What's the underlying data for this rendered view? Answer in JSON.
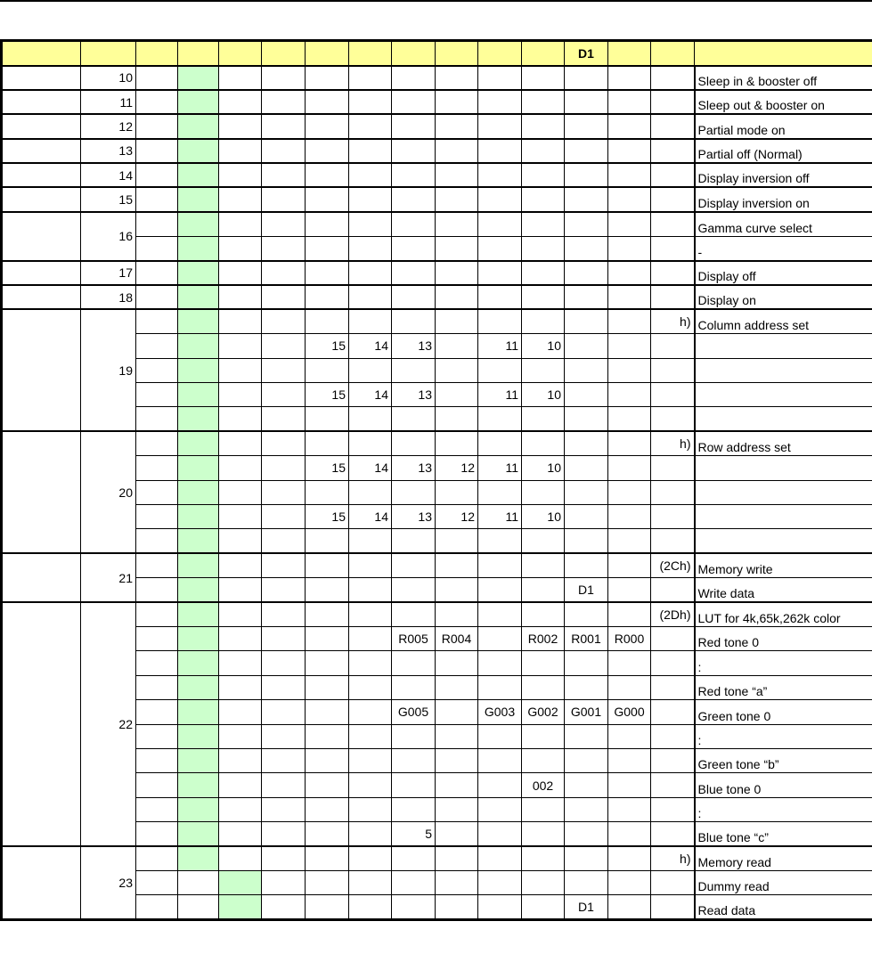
{
  "colors": {
    "header_bg": "#ffff99",
    "green_column": "#ccffcc"
  },
  "header": {
    "cells": [
      "",
      "",
      "",
      "",
      "",
      "",
      "",
      "",
      "",
      "",
      "",
      "",
      "D1",
      "",
      ""
    ],
    "desc": ""
  },
  "groups": [
    {
      "num": "10",
      "rows": [
        {
          "cells": {},
          "desc": "Sleep in & booster off"
        }
      ]
    },
    {
      "num": "11",
      "rows": [
        {
          "cells": {},
          "desc": "Sleep out & booster on"
        }
      ]
    },
    {
      "num": "12",
      "rows": [
        {
          "cells": {},
          "desc": "Partial mode on"
        }
      ]
    },
    {
      "num": "13",
      "rows": [
        {
          "cells": {},
          "desc": "Partial off (Normal)"
        }
      ]
    },
    {
      "num": "14",
      "rows": [
        {
          "cells": {},
          "desc": "Display inversion off"
        }
      ]
    },
    {
      "num": "15",
      "rows": [
        {
          "cells": {},
          "desc": "Display inversion on"
        }
      ]
    },
    {
      "num": "16",
      "rows": [
        {
          "cells": {},
          "desc": "Gamma curve select"
        },
        {
          "cells": {},
          "desc": "-"
        }
      ]
    },
    {
      "num": "17",
      "rows": [
        {
          "cells": {},
          "desc": "Display off"
        }
      ]
    },
    {
      "num": "18",
      "rows": [
        {
          "cells": {},
          "desc": "Display on"
        }
      ]
    },
    {
      "num": "19",
      "rows": [
        {
          "cells": {
            "12": "h)"
          },
          "desc": "Column address set"
        },
        {
          "cells": {
            "4": "15",
            "5": "14",
            "6": "13",
            "8": "11",
            "9": "10"
          },
          "desc": ""
        },
        {
          "cells": {},
          "desc": "",
          "merge": true
        },
        {
          "cells": {
            "4": "15",
            "5": "14",
            "6": "13",
            "8": "11",
            "9": "10"
          },
          "desc": ""
        },
        {
          "cells": {},
          "desc": "",
          "merge": true
        }
      ]
    },
    {
      "num": "20",
      "rows": [
        {
          "cells": {
            "12": "h)"
          },
          "desc": "Row address set"
        },
        {
          "cells": {
            "4": "15",
            "5": "14",
            "6": "13",
            "7": "12",
            "8": "11",
            "9": "10"
          },
          "desc": ""
        },
        {
          "cells": {},
          "desc": "",
          "merge": true
        },
        {
          "cells": {
            "4": "15",
            "5": "14",
            "6": "13",
            "7": "12",
            "8": "11",
            "9": "10"
          },
          "desc": ""
        },
        {
          "cells": {},
          "desc": "",
          "merge": true
        }
      ]
    },
    {
      "num": "21",
      "rows": [
        {
          "cells": {
            "12": "(2Ch)"
          },
          "desc": "Memory write"
        },
        {
          "cells": {
            "10": "D1"
          },
          "desc": "Write data"
        }
      ]
    },
    {
      "num": "22",
      "rows": [
        {
          "cells": {
            "12": "(2Dh)"
          },
          "desc": "LUT for 4k,65k,262k color"
        },
        {
          "cells": {
            "6": "R005",
            "7": "R004",
            "9": "R002",
            "10": "R001",
            "11": "R000"
          },
          "desc": "Red tone 0"
        },
        {
          "cells": {},
          "desc": ":"
        },
        {
          "cells": {},
          "desc": "Red tone “a”"
        },
        {
          "cells": {
            "6": "G005",
            "8": "G003",
            "9": "G002",
            "10": "G001",
            "11": "G000"
          },
          "desc": "Green tone 0"
        },
        {
          "cells": {},
          "desc": ":"
        },
        {
          "cells": {},
          "desc": "Green tone “b”"
        },
        {
          "cells": {
            "9": "002"
          },
          "desc": "Blue tone 0"
        },
        {
          "cells": {},
          "desc": ":"
        },
        {
          "cells": {
            "6": "5"
          },
          "desc": "Blue tone “c”"
        }
      ]
    },
    {
      "num": "23",
      "rows": [
        {
          "cells": {
            "12": "h)"
          },
          "desc": "Memory read"
        },
        {
          "cells": {},
          "desc": "Dummy read",
          "green_col": 2
        },
        {
          "cells": {
            "10": "D1"
          },
          "desc": "Read data",
          "green_col": 2
        }
      ]
    }
  ]
}
